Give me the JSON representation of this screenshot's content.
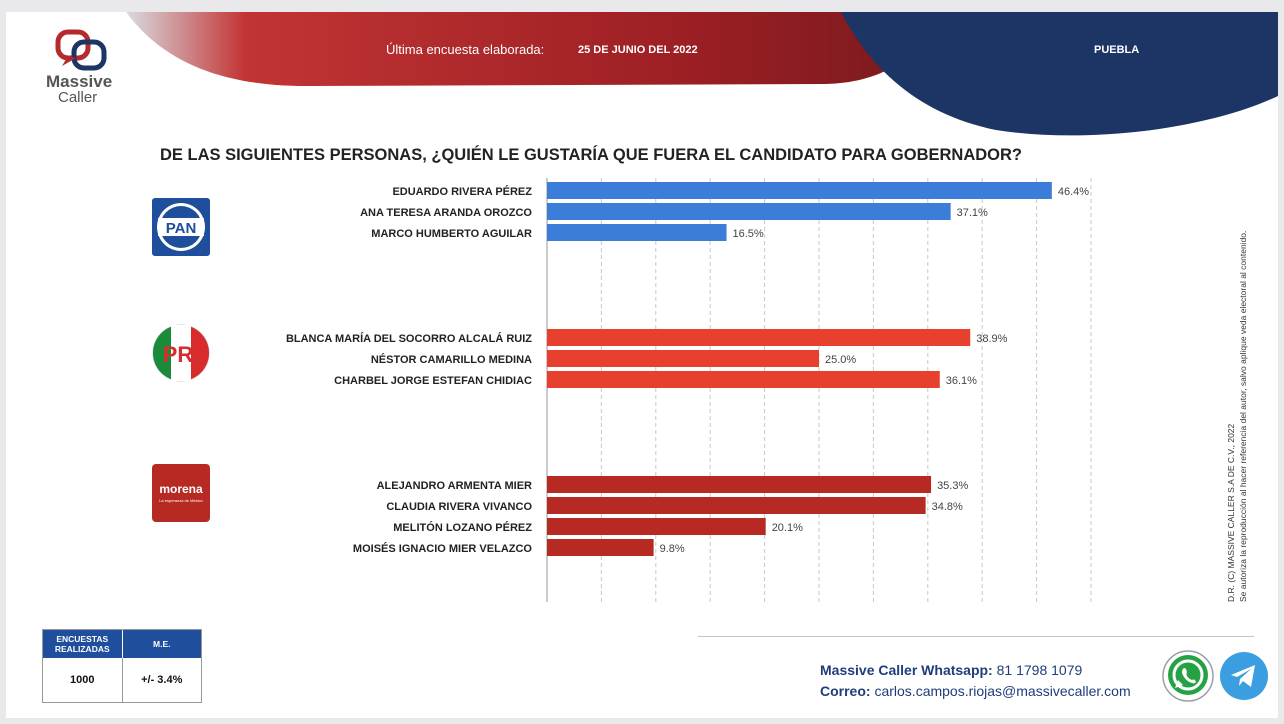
{
  "header": {
    "brand_line1": "Massive",
    "brand_line2": "Caller",
    "survey_label": "Última encuesta elaborada:",
    "survey_date": "25 DE JUNIO DEL 2022",
    "region": "PUEBLA"
  },
  "party_logos": {
    "pan": "PAN",
    "pri": "PRI",
    "morena": "morena",
    "morena_tagline": "La esperanza de México"
  },
  "copyright": {
    "line1": "D.R. (C) MASSIVE CALLER S.A DE C.V., 2022",
    "line2": "Se autoriza la reproducción al hacer referencia del autor, salvo aplique veda electoral al contenido."
  },
  "stats": {
    "col1_header": "ENCUESTAS REALIZADAS",
    "col2_header": "M.E.",
    "col1_value": "1000",
    "col2_value": "+/- 3.4%"
  },
  "contact": {
    "whatsapp_label": "Massive Caller Whatsapp:",
    "whatsapp_value": "81 1798 1079",
    "email_label": "Correo:",
    "email_value": "carlos.campos.riojas@massivecaller.com"
  },
  "colors": {
    "pan_bar": "#3b7dd8",
    "pri_bar": "#e8402f",
    "morena_bar": "#b72a24",
    "navy": "#1d3564",
    "red_banner": "#b52a2c"
  },
  "icons": [
    "whatsapp-icon",
    "telegram-icon",
    "massive-caller-logo-icon"
  ],
  "chart_data": {
    "type": "bar",
    "orientation": "horizontal",
    "title": "DE LAS SIGUIENTES PERSONAS, ¿QUIÉN LE GUSTARÍA QUE FUERA EL CANDIDATO PARA GOBERNADOR?",
    "xlim": [
      0,
      50
    ],
    "grid": true,
    "value_suffix": "%",
    "groups": [
      {
        "party": "PAN",
        "color": "#3b7dd8",
        "categories": [
          "EDUARDO RIVERA PÉREZ",
          "ANA TERESA ARANDA OROZCO",
          "MARCO HUMBERTO AGUILAR"
        ],
        "values": [
          46.4,
          37.1,
          16.5
        ]
      },
      {
        "party": "PRI",
        "color": "#e8402f",
        "categories": [
          "BLANCA MARÍA DEL SOCORRO ALCALÁ RUIZ",
          "NÉSTOR CAMARILLO MEDINA",
          "CHARBEL JORGE ESTEFAN CHIDIAC"
        ],
        "values": [
          38.9,
          25.0,
          36.1
        ]
      },
      {
        "party": "MORENA",
        "color": "#b72a24",
        "categories": [
          "ALEJANDRO ARMENTA MIER",
          "CLAUDIA RIVERA VIVANCO",
          "MELITÓN LOZANO PÉREZ",
          "MOISÉS IGNACIO MIER VELAZCO"
        ],
        "values": [
          35.3,
          34.8,
          20.1,
          9.8
        ]
      }
    ]
  }
}
